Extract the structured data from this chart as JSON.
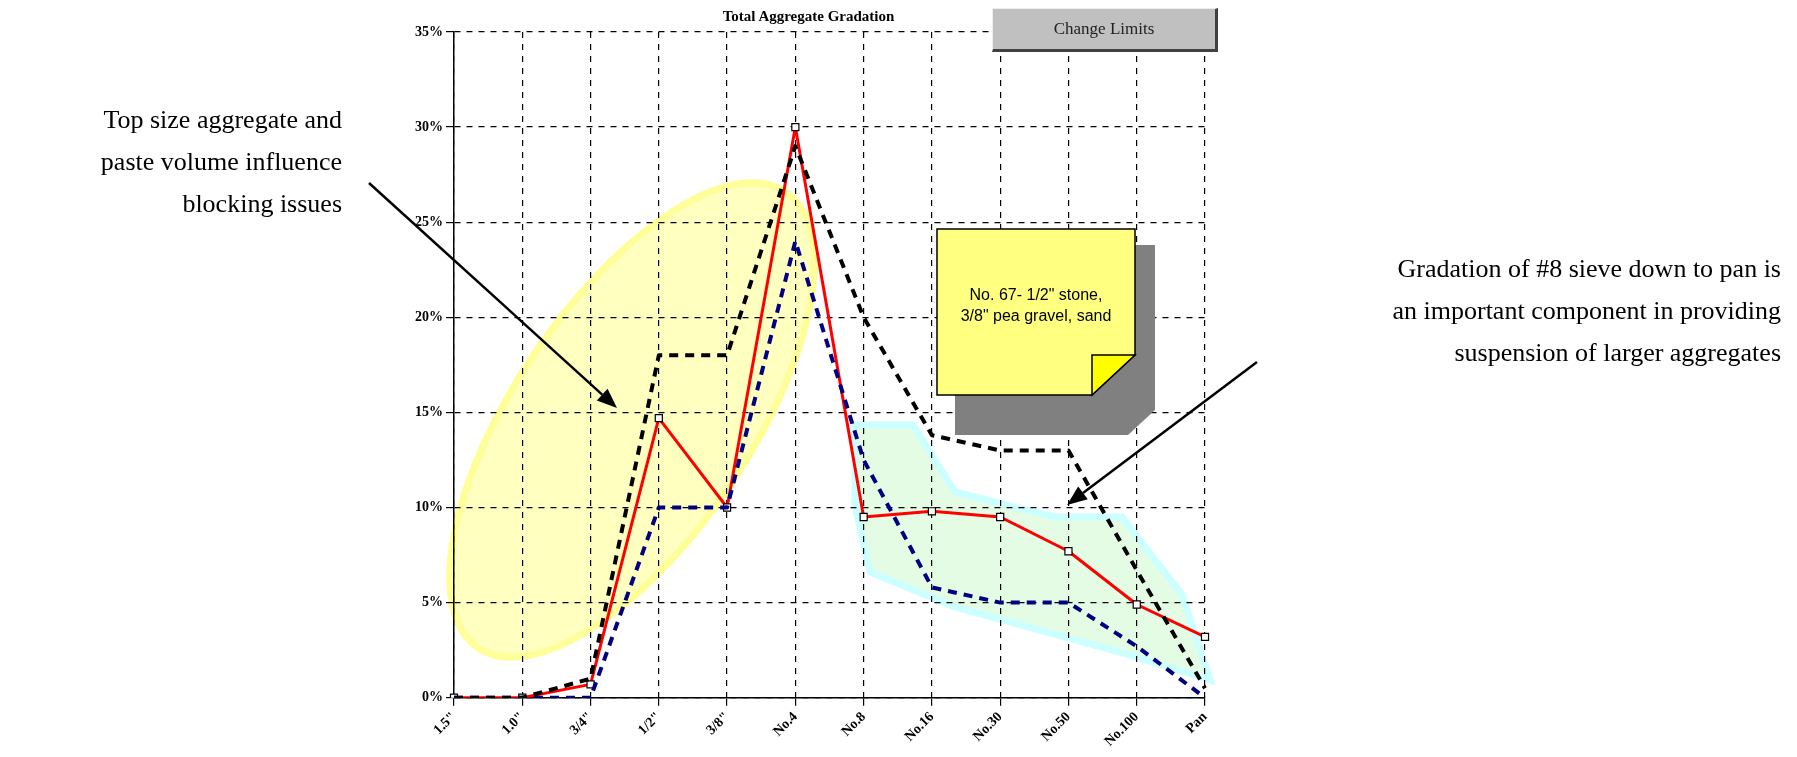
{
  "chart_data": {
    "type": "line",
    "title": "Total Aggregate Gradation",
    "categories": [
      "1.5\"",
      "1.0\"",
      "3/4\"",
      "1/2\"",
      "3/8\"",
      "No.4",
      "No.8",
      "No.16",
      "No.30",
      "No.50",
      "No.100",
      "Pan"
    ],
    "series": [
      {
        "color": "#000000",
        "line_style": "dashed",
        "marker": "none",
        "values": [
          0,
          0,
          1,
          18,
          18,
          29,
          20,
          13.8,
          13,
          13,
          6.7,
          0.5
        ]
      },
      {
        "color": "#000080",
        "line_style": "dashed",
        "marker": "none",
        "values": [
          0,
          0,
          0,
          10,
          10,
          24,
          12.5,
          5.8,
          5,
          5,
          2.7,
          0
        ]
      },
      {
        "color": "#ff0000",
        "line_style": "solid",
        "marker": "square",
        "values": [
          0,
          0,
          0.7,
          14.7,
          10,
          30,
          9.5,
          9.8,
          9.5,
          7.7,
          4.9,
          3.2
        ]
      }
    ],
    "ylim": [
      0,
      35
    ],
    "yticks": [
      {
        "value": 0,
        "label": "0%"
      },
      {
        "value": 5,
        "label": "5%"
      },
      {
        "value": 10,
        "label": "10%"
      },
      {
        "value": 15,
        "label": "15%"
      },
      {
        "value": 20,
        "label": "20%"
      },
      {
        "value": 25,
        "label": "25%"
      },
      {
        "value": 30,
        "label": "30%"
      },
      {
        "value": 35,
        "label": "35%"
      }
    ],
    "grid": true,
    "annotations": [
      "Top size aggregate and paste volume influence blocking issues",
      "Gradation of #8 sieve down to pan is an important component in providing suspension of larger aggregates",
      "No. 67- 1/2\" stone, 3/8\" pea gravel, sand",
      "Change Limits"
    ]
  }
}
